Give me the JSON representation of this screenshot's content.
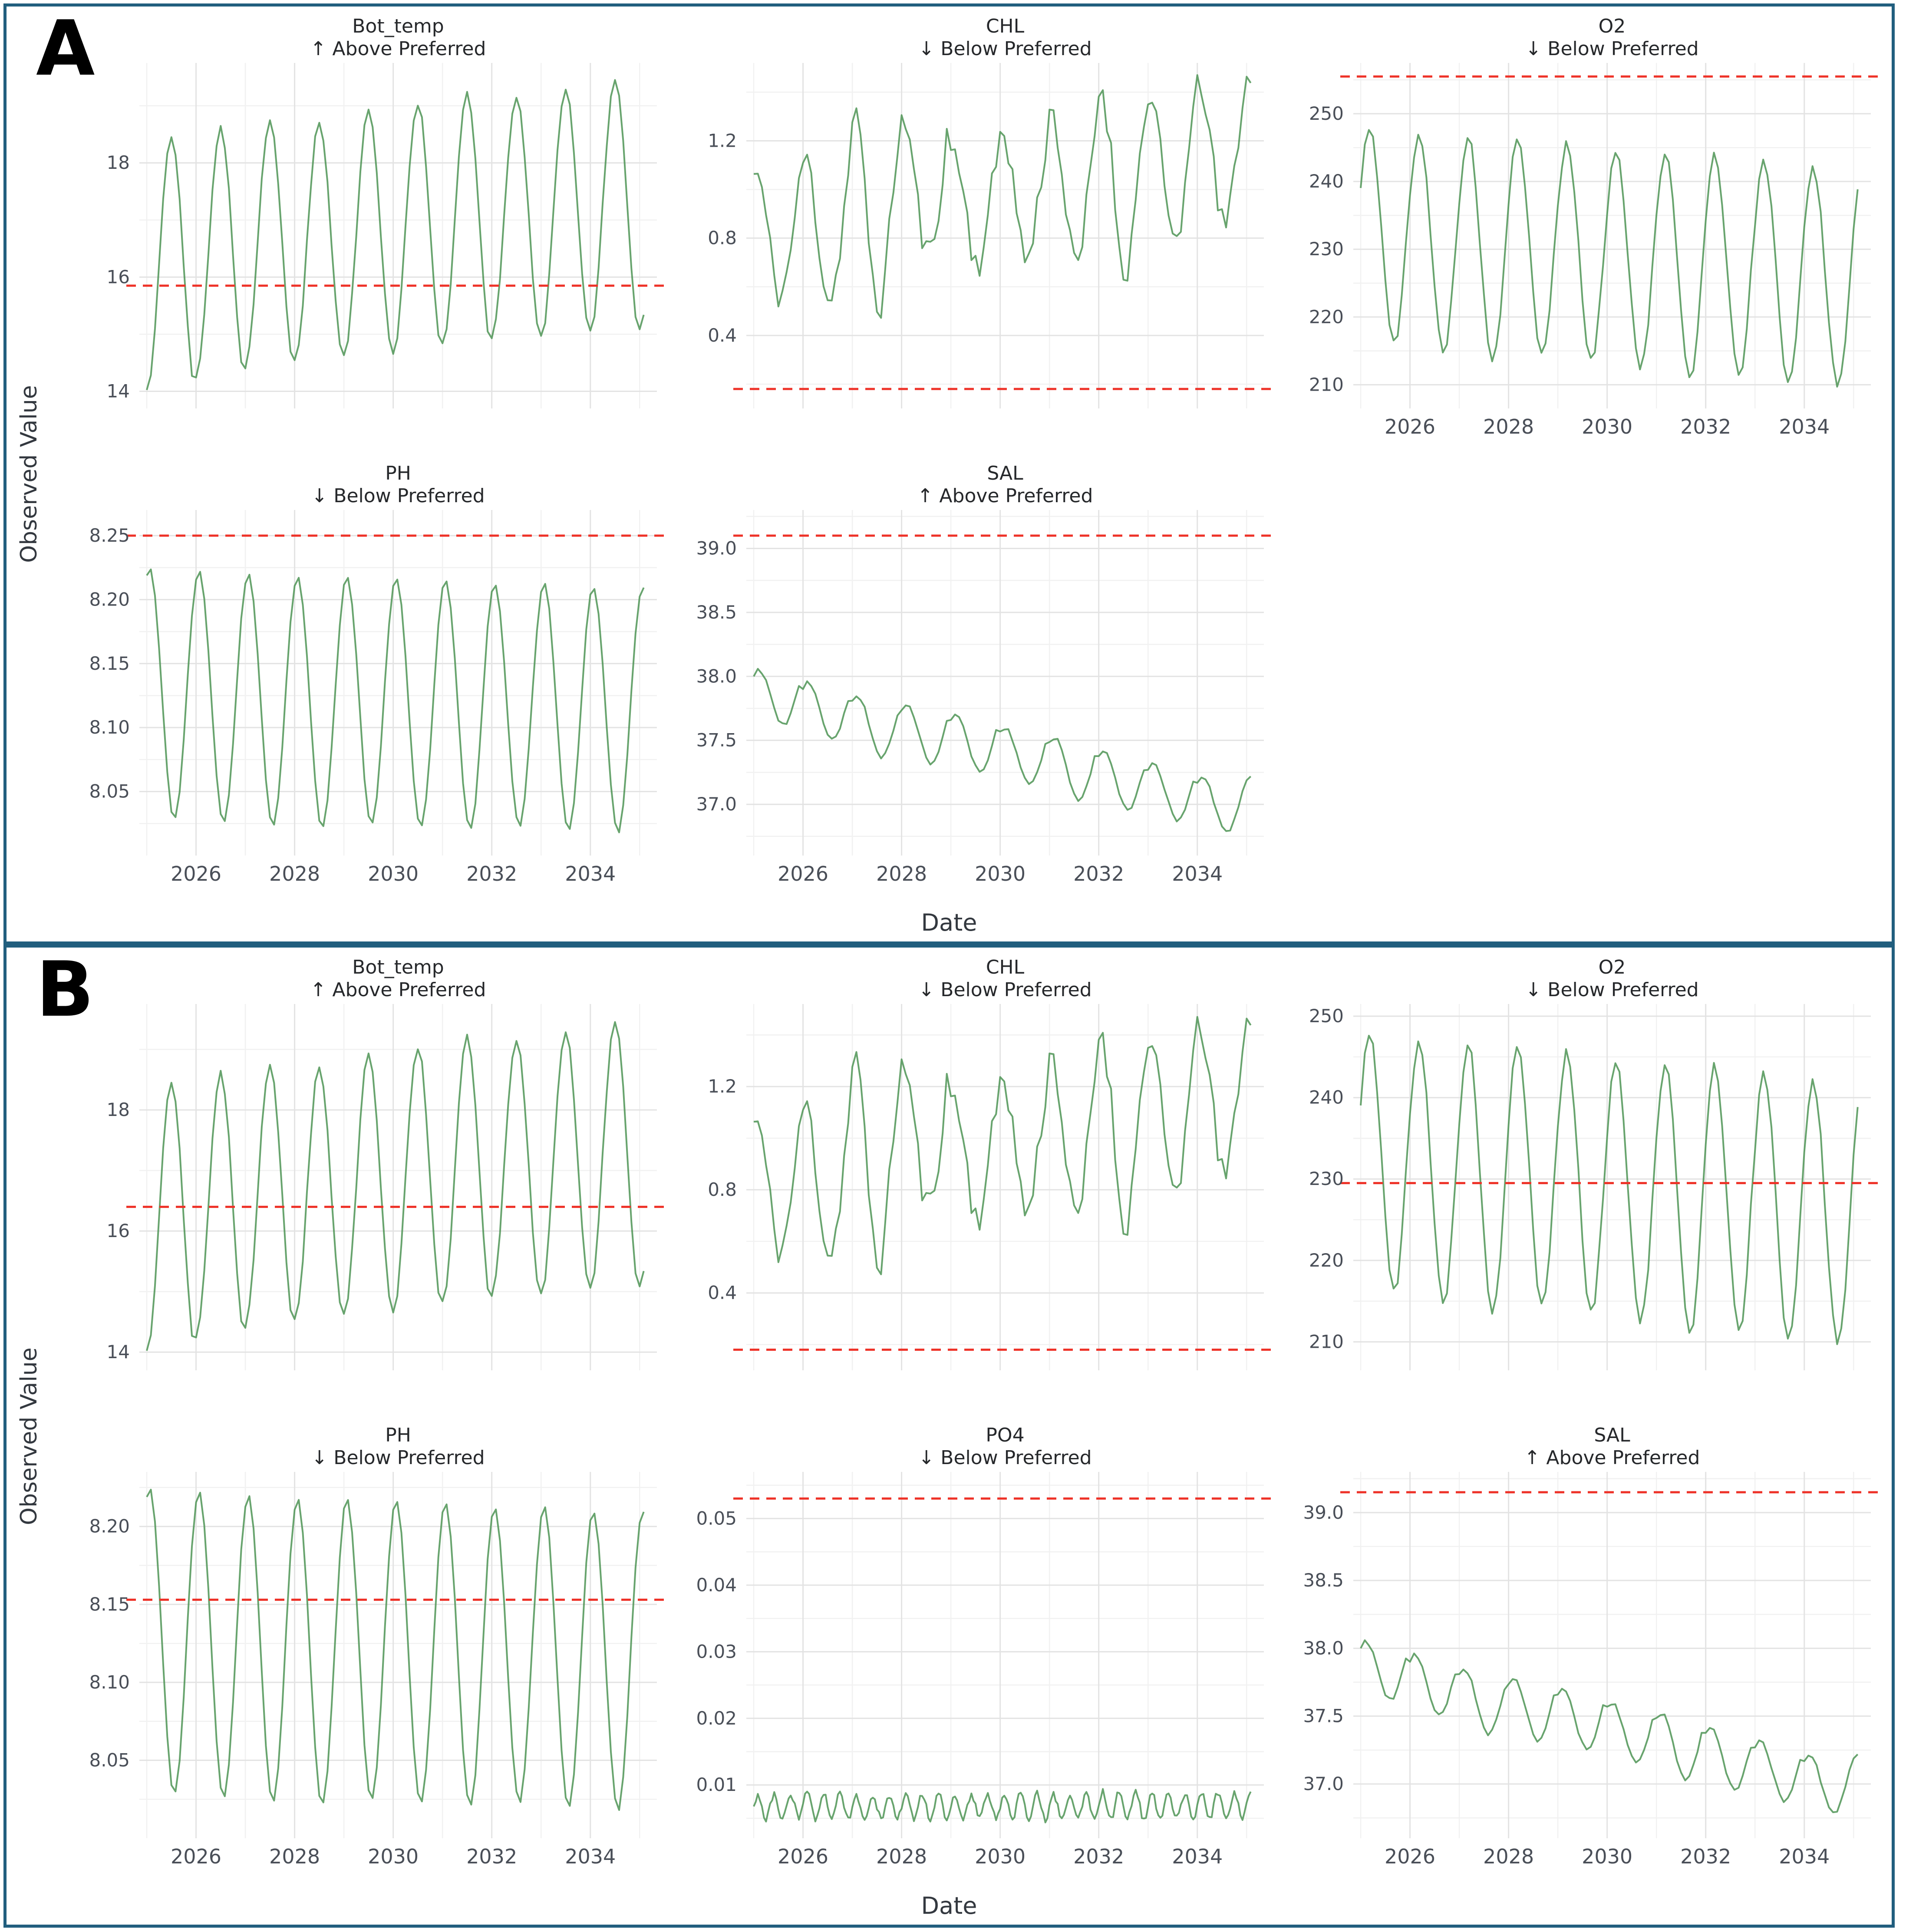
{
  "chart_data": {
    "type": "line",
    "figure_kind": "faceted-seasonal-timeseries",
    "colors": {
      "series_green": "#4e9455",
      "threshold_red": "#ee3228",
      "panel_border_blue": "#215e7e",
      "grid_major": "#e3e3e3",
      "grid_minor": "#f1f1f1",
      "tick_text": "#4a4f58",
      "title_text": "#26282b"
    },
    "x_axis": {
      "range": [
        2024.85,
        2035.35
      ],
      "tick_values": [
        2026,
        2028,
        2030,
        2032,
        2034
      ],
      "tick_labels": [
        "2026",
        "2028",
        "2030",
        "2032",
        "2034"
      ],
      "minor_tick_values": [
        2025,
        2027,
        2029,
        2031,
        2033,
        2035
      ]
    },
    "panels": [
      {
        "label": "A",
        "ylabel": "Observed Value",
        "xlabel": "Date",
        "subplots": [
          {
            "id": "bot_temp_a",
            "title": "Bot_temp",
            "subtitle": "↑ Above Preferred",
            "threshold": 15.85,
            "y_range": [
              13.7,
              19.75
            ],
            "y_tick_values": [
              14,
              16,
              18
            ],
            "y_tick_labels": [
              "14",
              "16",
              "18"
            ],
            "show_x_labels": false,
            "series": {
              "type": "seasonal",
              "x_start": 2025,
              "x_end": 2035.08,
              "points_per_year": 12,
              "cycles_per_year": 1,
              "phase_peak": 0.5,
              "annual_peaks": [
                18.45,
                18.6,
                18.75,
                18.7,
                18.9,
                19.05,
                19.2,
                19.15,
                19.3,
                19.45
              ],
              "annual_troughs": [
                14.0,
                14.25,
                14.45,
                14.5,
                14.6,
                14.65,
                14.8,
                14.95,
                14.95,
                15.05
              ],
              "noise": 0.05,
              "noise_seed": 2
            }
          },
          {
            "id": "chl_a",
            "title": "CHL",
            "subtitle": "↓ Below Preferred",
            "threshold": 0.18,
            "y_range": [
              0.1,
              1.52
            ],
            "y_tick_values": [
              0.4,
              0.8,
              1.2
            ],
            "y_tick_labels": [
              "0.4",
              "0.8",
              "1.2"
            ],
            "show_x_labels": false,
            "series": {
              "type": "seasonal",
              "x_start": 2025,
              "x_end": 2035.08,
              "points_per_year": 12,
              "cycles_per_year": 1,
              "phase_peak": 0.04,
              "annual_peaks": [
                1.07,
                1.13,
                1.3,
                1.28,
                1.17,
                1.25,
                1.32,
                1.42,
                1.35,
                1.45
              ],
              "annual_troughs": [
                0.57,
                0.55,
                0.52,
                0.73,
                0.7,
                0.72,
                0.68,
                0.67,
                0.8,
                0.85
              ],
              "noise": 0.07,
              "noise_seed": 11
            }
          },
          {
            "id": "o2_a",
            "title": "O2",
            "subtitle": "↓ Below Preferred",
            "threshold": 255.5,
            "y_range": [
              206.5,
              257.5
            ],
            "y_tick_values": [
              210,
              220,
              230,
              240,
              250
            ],
            "y_tick_labels": [
              "210",
              "220",
              "230",
              "240",
              "250"
            ],
            "show_x_labels": true,
            "series": {
              "type": "seasonal",
              "x_start": 2025,
              "x_end": 2035.08,
              "points_per_year": 12,
              "cycles_per_year": 1,
              "phase_peak": 0.18,
              "annual_peaks": [
                248,
                247,
                246.5,
                246,
                245.5,
                244.5,
                244,
                244,
                243,
                242
              ],
              "annual_troughs": [
                216,
                215,
                213.5,
                214.5,
                213.5,
                212.5,
                211,
                211.5,
                210.5,
                210
              ],
              "noise": 0.6,
              "noise_seed": 5
            }
          },
          {
            "id": "ph_a",
            "title": "PH",
            "subtitle": "↓ Below Preferred",
            "threshold": 8.25,
            "y_range": [
              8.0,
              8.27
            ],
            "y_tick_values": [
              8.05,
              8.1,
              8.15,
              8.2,
              8.25
            ],
            "y_tick_labels": [
              "8.05",
              "8.10",
              "8.15",
              "8.20",
              "8.25"
            ],
            "show_x_labels": true,
            "series": {
              "type": "seasonal",
              "x_start": 2025,
              "x_end": 2035.08,
              "points_per_year": 12,
              "cycles_per_year": 1,
              "phase_peak": 0.06,
              "annual_peaks": [
                8.225,
                8.222,
                8.22,
                8.218,
                8.218,
                8.217,
                8.215,
                8.212,
                8.213,
                8.21
              ],
              "annual_troughs": [
                8.028,
                8.025,
                8.023,
                8.021,
                8.024,
                8.022,
                8.02,
                8.023,
                8.019,
                8.018
              ],
              "noise": 0.001,
              "noise_seed": 4
            }
          },
          {
            "id": "sal_a",
            "title": "SAL",
            "subtitle": "↑ Above Preferred",
            "threshold": 39.1,
            "y_range": [
              36.6,
              39.3
            ],
            "y_tick_values": [
              37.0,
              37.5,
              38.0,
              38.5,
              39.0
            ],
            "y_tick_labels": [
              "37.0",
              "37.5",
              "38.0",
              "38.5",
              "39.0"
            ],
            "show_x_labels": true,
            "series": {
              "type": "seasonal",
              "x_start": 2025,
              "x_end": 2035.08,
              "points_per_year": 12,
              "cycles_per_year": 1,
              "phase_peak": 0.1,
              "annual_peaks": [
                38.05,
                37.95,
                37.85,
                37.78,
                37.7,
                37.6,
                37.52,
                37.42,
                37.32,
                37.22
              ],
              "annual_troughs": [
                37.62,
                37.5,
                37.37,
                37.32,
                37.25,
                37.15,
                37.03,
                36.95,
                36.88,
                36.78
              ],
              "noise": 0.015,
              "noise_seed": 9
            }
          }
        ]
      },
      {
        "label": "B",
        "ylabel": "Observed Value",
        "xlabel": "Date",
        "subplots": [
          {
            "id": "bot_temp_b",
            "title": "Bot_temp",
            "subtitle": "↑ Above Preferred",
            "threshold": 16.4,
            "y_range": [
              13.7,
              19.75
            ],
            "y_tick_values": [
              14,
              16,
              18
            ],
            "y_tick_labels": [
              "14",
              "16",
              "18"
            ],
            "show_x_labels": false,
            "series": {
              "type": "seasonal",
              "x_start": 2025,
              "x_end": 2035.08,
              "points_per_year": 12,
              "cycles_per_year": 1,
              "phase_peak": 0.5,
              "annual_peaks": [
                18.45,
                18.6,
                18.75,
                18.7,
                18.9,
                19.05,
                19.2,
                19.15,
                19.3,
                19.45
              ],
              "annual_troughs": [
                14.0,
                14.25,
                14.45,
                14.5,
                14.6,
                14.65,
                14.8,
                14.95,
                14.95,
                15.05
              ],
              "noise": 0.05,
              "noise_seed": 2
            }
          },
          {
            "id": "chl_b",
            "title": "CHL",
            "subtitle": "↓ Below Preferred",
            "threshold": 0.18,
            "y_range": [
              0.1,
              1.52
            ],
            "y_tick_values": [
              0.4,
              0.8,
              1.2
            ],
            "y_tick_labels": [
              "0.4",
              "0.8",
              "1.2"
            ],
            "show_x_labels": false,
            "series": {
              "type": "seasonal",
              "x_start": 2025,
              "x_end": 2035.08,
              "points_per_year": 12,
              "cycles_per_year": 1,
              "phase_peak": 0.04,
              "annual_peaks": [
                1.07,
                1.13,
                1.3,
                1.28,
                1.17,
                1.25,
                1.32,
                1.42,
                1.35,
                1.45
              ],
              "annual_troughs": [
                0.57,
                0.55,
                0.52,
                0.73,
                0.7,
                0.72,
                0.68,
                0.67,
                0.8,
                0.85
              ],
              "noise": 0.07,
              "noise_seed": 11
            }
          },
          {
            "id": "o2_b",
            "title": "O2",
            "subtitle": "↓ Below Preferred",
            "threshold": 229.5,
            "y_range": [
              206.5,
              251.5
            ],
            "y_tick_values": [
              210,
              220,
              230,
              240,
              250
            ],
            "y_tick_labels": [
              "210",
              "220",
              "230",
              "240",
              "250"
            ],
            "show_x_labels": false,
            "series": {
              "type": "seasonal",
              "x_start": 2025,
              "x_end": 2035.08,
              "points_per_year": 12,
              "cycles_per_year": 1,
              "phase_peak": 0.18,
              "annual_peaks": [
                248,
                247,
                246.5,
                246,
                245.5,
                244.5,
                244,
                244,
                243,
                242
              ],
              "annual_troughs": [
                216,
                215,
                213.5,
                214.5,
                213.5,
                212.5,
                211,
                211.5,
                210.5,
                210
              ],
              "noise": 0.6,
              "noise_seed": 5
            }
          },
          {
            "id": "ph_b",
            "title": "PH",
            "subtitle": "↓ Below Preferred",
            "threshold": 8.153,
            "y_range": [
              8.0,
              8.235
            ],
            "y_tick_values": [
              8.05,
              8.1,
              8.15,
              8.2
            ],
            "y_tick_labels": [
              "8.05",
              "8.10",
              "8.15",
              "8.20"
            ],
            "show_x_labels": true,
            "series": {
              "type": "seasonal",
              "x_start": 2025,
              "x_end": 2035.08,
              "points_per_year": 12,
              "cycles_per_year": 1,
              "phase_peak": 0.06,
              "annual_peaks": [
                8.225,
                8.222,
                8.22,
                8.218,
                8.218,
                8.217,
                8.215,
                8.212,
                8.213,
                8.21
              ],
              "annual_troughs": [
                8.028,
                8.025,
                8.023,
                8.021,
                8.024,
                8.022,
                8.02,
                8.023,
                8.019,
                8.018
              ],
              "noise": 0.001,
              "noise_seed": 4
            }
          },
          {
            "id": "po4_b",
            "title": "PO4",
            "subtitle": "↓ Below Preferred",
            "threshold": 0.053,
            "y_range": [
              0.002,
              0.057
            ],
            "y_tick_values": [
              0.01,
              0.02,
              0.03,
              0.04,
              0.05
            ],
            "y_tick_labels": [
              "0.01",
              "0.02",
              "0.03",
              "0.04",
              "0.05"
            ],
            "show_x_labels": true,
            "series": {
              "type": "seasonal",
              "x_start": 2025,
              "x_end": 2035.08,
              "points_per_year": 24,
              "cycles_per_year": 3,
              "phase_peak": 0.25,
              "annual_peaks": [
                0.0085,
                0.0088,
                0.0085,
                0.0087,
                0.0086,
                0.0088,
                0.0085,
                0.009,
                0.0086,
                0.0088
              ],
              "annual_troughs": [
                0.005,
                0.0048,
                0.005,
                0.0049,
                0.005,
                0.0048,
                0.005,
                0.0049,
                0.005,
                0.0049
              ],
              "noise": 0.0005,
              "noise_seed": 6
            }
          },
          {
            "id": "sal_b",
            "title": "SAL",
            "subtitle": "↑ Above Preferred",
            "threshold": 39.15,
            "y_range": [
              36.6,
              39.3
            ],
            "y_tick_values": [
              37.0,
              37.5,
              38.0,
              38.5,
              39.0
            ],
            "y_tick_labels": [
              "37.0",
              "37.5",
              "38.0",
              "38.5",
              "39.0"
            ],
            "show_x_labels": true,
            "series": {
              "type": "seasonal",
              "x_start": 2025,
              "x_end": 2035.08,
              "points_per_year": 12,
              "cycles_per_year": 1,
              "phase_peak": 0.1,
              "annual_peaks": [
                38.05,
                37.95,
                37.85,
                37.78,
                37.7,
                37.6,
                37.52,
                37.42,
                37.32,
                37.22
              ],
              "annual_troughs": [
                37.62,
                37.5,
                37.37,
                37.32,
                37.25,
                37.15,
                37.03,
                36.95,
                36.88,
                36.78
              ],
              "noise": 0.015,
              "noise_seed": 9
            }
          }
        ]
      }
    ]
  }
}
